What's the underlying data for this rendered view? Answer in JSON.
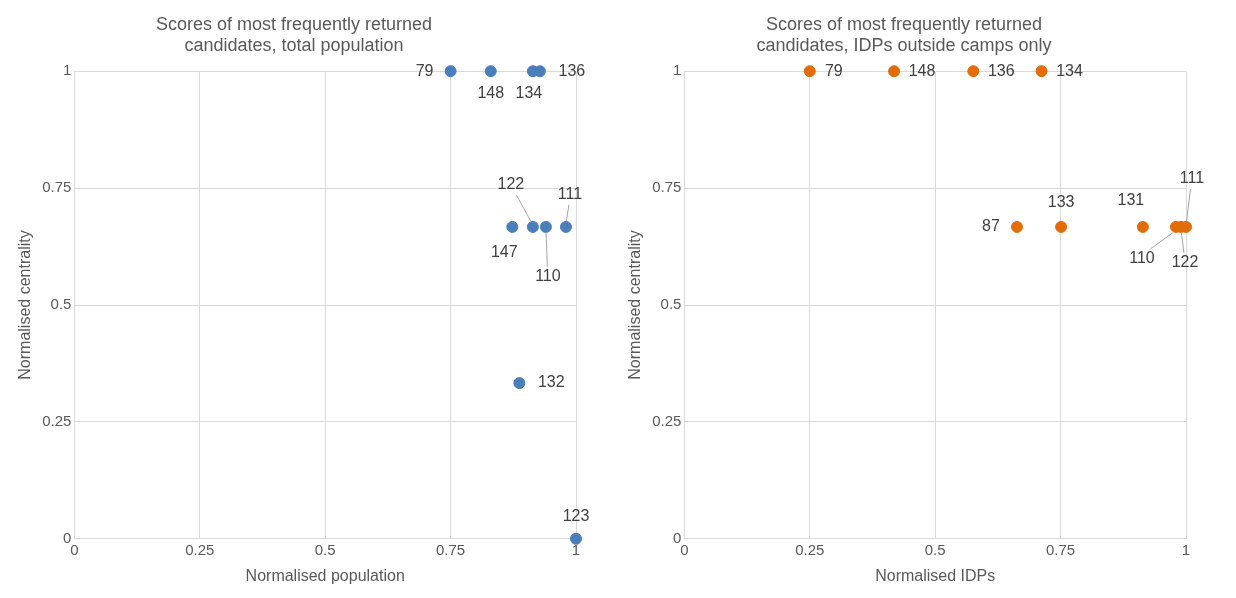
{
  "chart_data": [
    {
      "type": "scatter",
      "title": "Scores of most frequently returned candidates, total population",
      "xlabel": "Normalised population",
      "ylabel": "Normalised centrality",
      "xlim": [
        0,
        1
      ],
      "xticks": [
        0,
        0.25,
        0.5,
        0.75,
        1
      ],
      "ylim": [
        0,
        1
      ],
      "yticks": [
        0,
        0.25,
        0.5,
        0.75,
        1
      ],
      "grid": true,
      "legend": false,
      "marker": "circle",
      "series": [
        {
          "color": "#4a7ebb",
          "x": [
            0.75,
            0.83,
            0.914,
            0.928,
            0.873,
            0.914,
            0.94,
            0.98,
            0.887,
            1
          ],
          "values": [
            1,
            1,
            1,
            1,
            0.667,
            0.667,
            0.667,
            0.667,
            0.333,
            0
          ]
        }
      ],
      "annotations": [
        {
          "text": "79",
          "x": 0.75,
          "y": 1
        },
        {
          "text": "148",
          "x": 0.83,
          "y": 1
        },
        {
          "text": "134",
          "x": 0.914,
          "y": 1
        },
        {
          "text": "136",
          "x": 0.928,
          "y": 1
        },
        {
          "text": "147",
          "x": 0.873,
          "y": 0.667
        },
        {
          "text": "122",
          "x": 0.914,
          "y": 0.667
        },
        {
          "text": "110",
          "x": 0.94,
          "y": 0.667
        },
        {
          "text": "111",
          "x": 0.98,
          "y": 0.667
        },
        {
          "text": "132",
          "x": 0.887,
          "y": 0.333
        },
        {
          "text": "123",
          "x": 1,
          "y": 0
        }
      ]
    },
    {
      "type": "scatter",
      "title": "Scores of most frequently returned candidates, IDPs outside camps only",
      "xlabel": "Normalised IDPs",
      "ylabel": "Normalised centrality",
      "xlim": [
        0,
        1
      ],
      "xticks": [
        0,
        0.25,
        0.5,
        0.75,
        1
      ],
      "ylim": [
        0,
        1
      ],
      "yticks": [
        0,
        0.25,
        0.5,
        0.75,
        1
      ],
      "grid": true,
      "legend": false,
      "marker": "circle",
      "series": [
        {
          "color": "#e36c09",
          "x": [
            0.25,
            0.418,
            0.576,
            0.712,
            0.663,
            0.751,
            0.914,
            0.98,
            0.99,
            1
          ],
          "values": [
            1,
            1,
            1,
            1,
            0.667,
            0.667,
            0.667,
            0.667,
            0.667,
            0.667
          ]
        }
      ],
      "annotations": [
        {
          "text": "79",
          "x": 0.25,
          "y": 1
        },
        {
          "text": "148",
          "x": 0.418,
          "y": 1
        },
        {
          "text": "136",
          "x": 0.576,
          "y": 1
        },
        {
          "text": "134",
          "x": 0.712,
          "y": 1
        },
        {
          "text": "87",
          "x": 0.663,
          "y": 0.667
        },
        {
          "text": "133",
          "x": 0.751,
          "y": 0.667
        },
        {
          "text": "131",
          "x": 0.914,
          "y": 0.667
        },
        {
          "text": "110",
          "x": 0.98,
          "y": 0.667
        },
        {
          "text": "122",
          "x": 0.99,
          "y": 0.667
        },
        {
          "text": "111",
          "x": 1,
          "y": 0.667
        }
      ]
    }
  ]
}
